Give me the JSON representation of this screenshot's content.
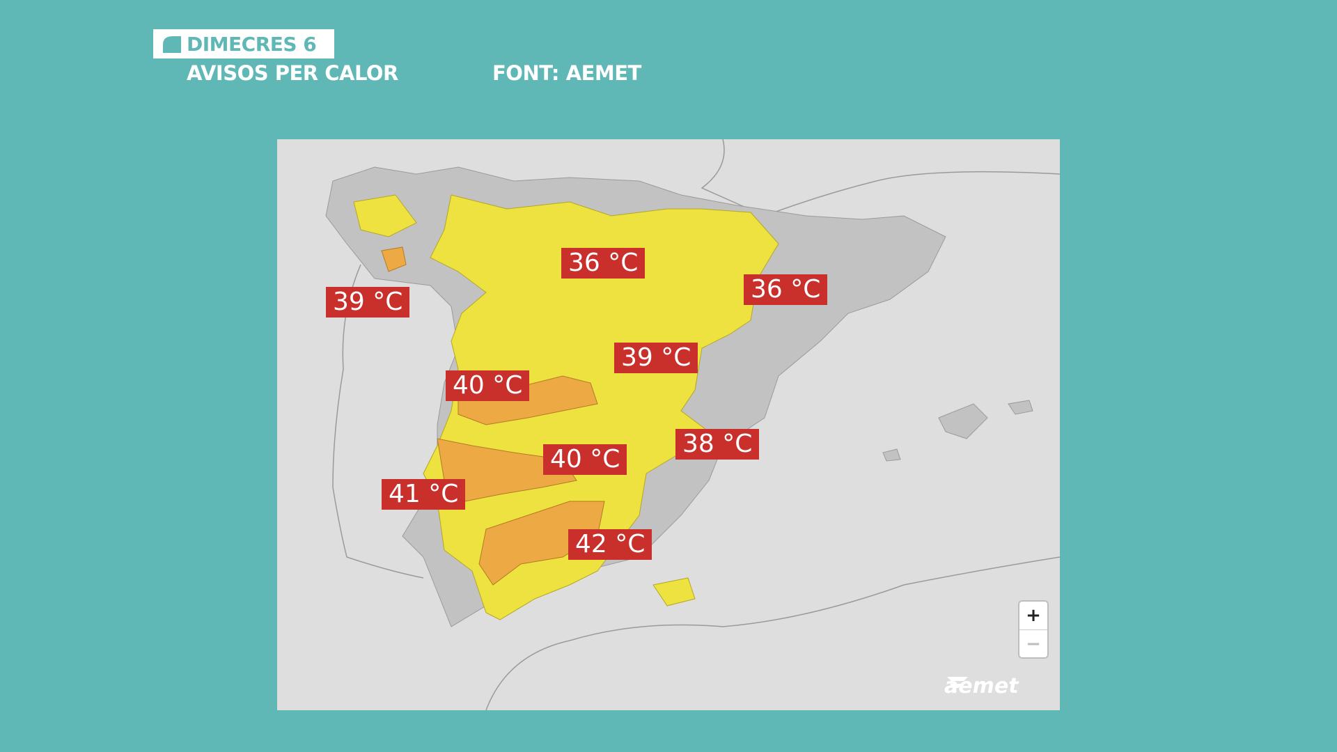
{
  "header": {
    "day": "DIMECRES 6",
    "title": "AVISOS PER CALOR",
    "source": "FONT: AEMET"
  },
  "map": {
    "colors": {
      "background": "#5fb8b6",
      "sea": "#dedede",
      "land": "#c2c2c2",
      "yellow_warning": "#ede23f",
      "orange_warning": "#eda944",
      "label_bg": "#c9302c"
    },
    "labels": [
      {
        "id": "galicia",
        "text": "39 °C"
      },
      {
        "id": "castilla-norte",
        "text": "36 °C"
      },
      {
        "id": "aragon",
        "text": "36 °C"
      },
      {
        "id": "madrid",
        "text": "39 °C"
      },
      {
        "id": "tajo",
        "text": "40 °C"
      },
      {
        "id": "guadiana",
        "text": "40 °C"
      },
      {
        "id": "valencia",
        "text": "38 °C"
      },
      {
        "id": "extremadura-sur",
        "text": "41 °C"
      },
      {
        "id": "guadalquivir",
        "text": "42 °C"
      }
    ],
    "zoom": {
      "in": "+",
      "out": "−"
    },
    "logo": "aemet"
  }
}
